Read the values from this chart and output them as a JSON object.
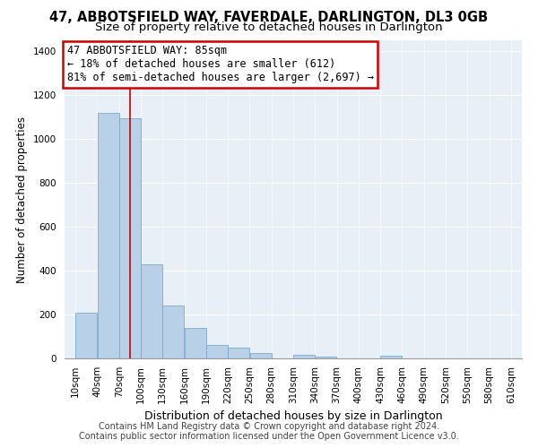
{
  "title": "47, ABBOTSFIELD WAY, FAVERDALE, DARLINGTON, DL3 0GB",
  "subtitle": "Size of property relative to detached houses in Darlington",
  "xlabel": "Distribution of detached houses by size in Darlington",
  "ylabel": "Number of detached properties",
  "bar_color": "#b8d0e8",
  "bar_edge_color": "#7aaacb",
  "plot_bg_color": "#e8eff7",
  "grid_color": "#ffffff",
  "annotation_box_edge": "#cc0000",
  "vline_color": "#cc0000",
  "vline_x": 85,
  "bin_edges": [
    10,
    40,
    70,
    100,
    130,
    160,
    190,
    220,
    250,
    280,
    310,
    340,
    370,
    400,
    430,
    460,
    490,
    520,
    550,
    580,
    610
  ],
  "bin_values": [
    210,
    1120,
    1095,
    430,
    240,
    140,
    60,
    47,
    25,
    0,
    15,
    10,
    0,
    0,
    12,
    0,
    0,
    0,
    0,
    0
  ],
  "ylim": [
    0,
    1450
  ],
  "yticks": [
    0,
    200,
    400,
    600,
    800,
    1000,
    1200,
    1400
  ],
  "annotation_text": "47 ABBOTSFIELD WAY: 85sqm\n← 18% of detached houses are smaller (612)\n81% of semi-detached houses are larger (2,697) →",
  "footer_line1": "Contains HM Land Registry data © Crown copyright and database right 2024.",
  "footer_line2": "Contains public sector information licensed under the Open Government Licence v3.0.",
  "title_fontsize": 10.5,
  "subtitle_fontsize": 9.5,
  "xlabel_fontsize": 9,
  "ylabel_fontsize": 8.5,
  "annotation_fontsize": 8.5,
  "footer_fontsize": 7,
  "tick_label_fontsize": 7.5
}
